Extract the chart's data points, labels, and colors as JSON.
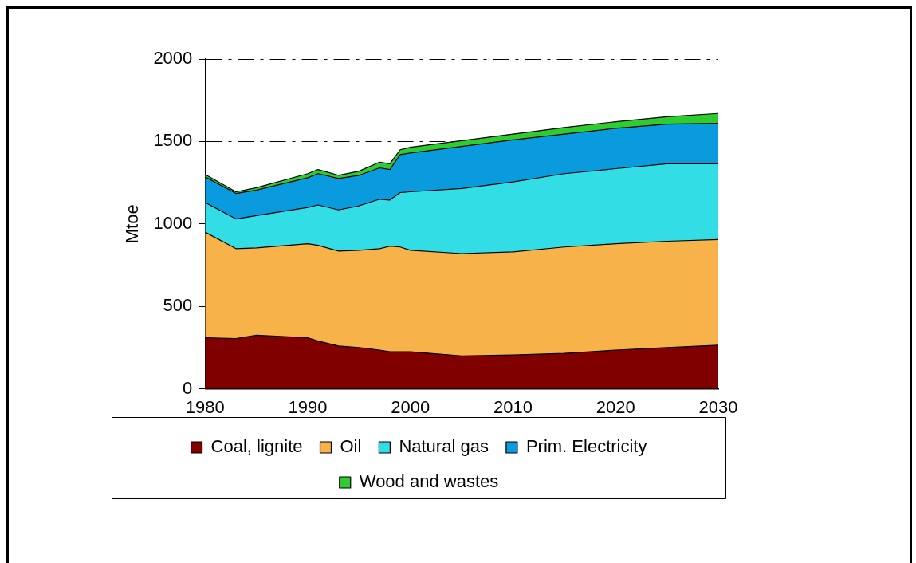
{
  "chart_data": {
    "type": "area",
    "stacked": true,
    "ylabel": "Mtoe",
    "x": [
      1980,
      1983,
      1985,
      1990,
      1991,
      1993,
      1995,
      1997,
      1998,
      1999,
      2000,
      2005,
      2010,
      2015,
      2020,
      2025,
      2030
    ],
    "xlim": [
      1980,
      2030
    ],
    "xticks": [
      1980,
      1990,
      2000,
      2010,
      2020,
      2030
    ],
    "ylim": [
      0,
      2000
    ],
    "yticks": [
      0,
      500,
      1000,
      1500,
      2000
    ],
    "grid": "y",
    "legend": "bottom",
    "series": [
      {
        "name": "Coal, lignite",
        "color": "#800000",
        "values": [
          310,
          305,
          325,
          310,
          290,
          260,
          250,
          235,
          225,
          225,
          225,
          200,
          205,
          215,
          235,
          250,
          265
        ]
      },
      {
        "name": "Oil",
        "color": "#f7b24a",
        "values": [
          640,
          545,
          530,
          570,
          580,
          575,
          590,
          615,
          640,
          635,
          615,
          620,
          625,
          645,
          645,
          645,
          640
        ]
      },
      {
        "name": "Natural gas",
        "color": "#33dde6",
        "values": [
          180,
          180,
          195,
          220,
          245,
          250,
          270,
          300,
          280,
          330,
          355,
          395,
          425,
          445,
          455,
          470,
          460
        ]
      },
      {
        "name": "Prim. Electricity",
        "color": "#0a9ade",
        "values": [
          155,
          155,
          155,
          180,
          190,
          190,
          185,
          190,
          185,
          230,
          235,
          255,
          255,
          240,
          245,
          240,
          245
        ]
      },
      {
        "name": "Wood and wastes",
        "color": "#2ecc2e",
        "values": [
          15,
          10,
          15,
          25,
          25,
          20,
          25,
          35,
          35,
          30,
          35,
          35,
          35,
          40,
          40,
          45,
          60
        ]
      }
    ]
  }
}
